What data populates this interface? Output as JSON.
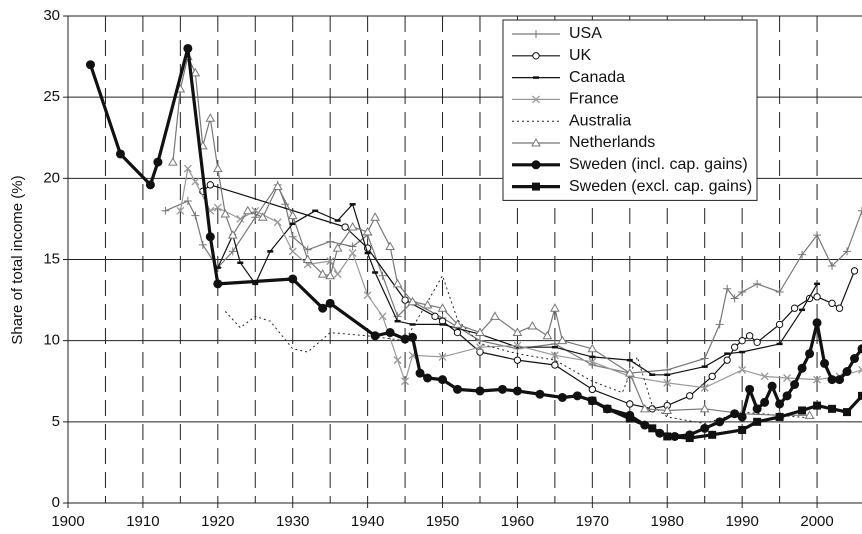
{
  "chart_data": {
    "type": "line",
    "y_label": "Share of total income (%)",
    "xlim": [
      1900,
      2006
    ],
    "ylim": [
      0,
      30
    ],
    "xticks": [
      1900,
      1910,
      1920,
      1930,
      1940,
      1950,
      1960,
      1970,
      1980,
      1990,
      2000
    ],
    "yticks": [
      0,
      5,
      10,
      15,
      20,
      25,
      30
    ],
    "grid": true,
    "legend": "top-right",
    "series": [
      {
        "name": "USA",
        "color": "#777777",
        "marker": "plus",
        "width": 1.2,
        "dash": "none",
        "x": [
          1913,
          1916,
          1917,
          1918,
          1920,
          1922,
          1925,
          1928,
          1929,
          1930,
          1932,
          1935,
          1938,
          1940,
          1942,
          1944,
          1946,
          1950,
          1955,
          1960,
          1965,
          1970,
          1975,
          1980,
          1985,
          1987,
          1988,
          1989,
          1990,
          1992,
          1995,
          1998,
          2000,
          2002,
          2004,
          2006
        ],
        "values": [
          18,
          18.6,
          17.7,
          15.9,
          14.5,
          15.5,
          17.6,
          19.6,
          18.4,
          16.4,
          15.6,
          16.1,
          15.8,
          16.5,
          14.0,
          11.5,
          12.4,
          11.4,
          10.0,
          9.5,
          9.8,
          8.5,
          8.0,
          8.2,
          8.9,
          11,
          13.2,
          12.6,
          13,
          13.5,
          13.0,
          15.3,
          16.5,
          14.6,
          15.5,
          18
        ]
      },
      {
        "name": "UK",
        "color": "#111111",
        "marker": "circle",
        "width": 1.2,
        "dash": "none",
        "x": [
          1918,
          1919,
          1937,
          1940,
          1945,
          1949,
          1950,
          1952,
          1955,
          1960,
          1965,
          1970,
          1975,
          1978,
          1980,
          1983,
          1986,
          1988,
          1989,
          1990,
          1991,
          1992,
          1995,
          1997,
          1999,
          2000,
          2002,
          2003,
          2005
        ],
        "values": [
          19.2,
          19.6,
          17.0,
          15.7,
          12.5,
          11.5,
          11.2,
          10.5,
          9.3,
          8.8,
          8.5,
          7.0,
          6.1,
          5.8,
          6.0,
          6.6,
          7.8,
          8.8,
          9.6,
          10,
          10.3,
          9.9,
          11.0,
          12.0,
          12.6,
          12.7,
          12.3,
          12.0,
          14.3
        ]
      },
      {
        "name": "Canada",
        "color": "#111111",
        "marker": "dash",
        "width": 1.2,
        "dash": "none",
        "x": [
          1920,
          1922,
          1923,
          1925,
          1927,
          1930,
          1933,
          1936,
          1938,
          1940,
          1941,
          1944,
          1946,
          1950,
          1955,
          1960,
          1965,
          1970,
          1975,
          1978,
          1980,
          1985,
          1988,
          1990,
          1995,
          1998,
          2000
        ],
        "values": [
          14.5,
          16.5,
          14.8,
          13.5,
          15.5,
          17.2,
          18.0,
          17.4,
          18.4,
          15.4,
          14.2,
          11.2,
          11.0,
          11.0,
          10.4,
          9.6,
          9.6,
          9.0,
          8.8,
          7.9,
          7.9,
          8.4,
          9.2,
          9.3,
          9.8,
          11.9,
          13.5
        ]
      },
      {
        "name": "France",
        "color": "#999999",
        "marker": "x",
        "width": 1.2,
        "dash": "none",
        "x": [
          1915,
          1916,
          1917,
          1919,
          1920,
          1923,
          1925,
          1928,
          1930,
          1932,
          1935,
          1936,
          1938,
          1940,
          1942,
          1944,
          1945,
          1946,
          1950,
          1955,
          1960,
          1965,
          1970,
          1975,
          1980,
          1985,
          1990,
          1993,
          1996,
          2000,
          2003,
          2006
        ],
        "values": [
          18,
          20.6,
          19.8,
          18.0,
          18.2,
          17.5,
          18.0,
          17.3,
          15.5,
          14.7,
          14.9,
          14.1,
          15.4,
          12.8,
          11.5,
          8.8,
          7.5,
          9.1,
          9.0,
          9.6,
          9.7,
          9.1,
          8.7,
          7.8,
          7.4,
          7.1,
          8.2,
          7.8,
          7.7,
          7.6,
          7.8,
          8.2
        ]
      },
      {
        "name": "Australia",
        "color": "#222222",
        "marker": "none",
        "width": 1,
        "dash": "2 3",
        "x": [
          1921,
          1923,
          1925,
          1927,
          1930,
          1932,
          1935,
          1940,
          1945,
          1950,
          1952,
          1955,
          1960,
          1965,
          1970,
          1974,
          1976,
          1978,
          1980,
          1985,
          1990,
          1995,
          2000
        ],
        "values": [
          11.8,
          10.8,
          11.5,
          11.2,
          9.5,
          9.3,
          10.5,
          10.3,
          10.0,
          14.0,
          11.3,
          9.8,
          9.2,
          8.8,
          7.5,
          6.8,
          9.0,
          6.0,
          5.3,
          4.9,
          5.6,
          5.4,
          5.2
        ]
      },
      {
        "name": "Netherlands",
        "color": "#777777",
        "marker": "triangle",
        "width": 1.2,
        "dash": "none",
        "x": [
          1914,
          1915,
          1916,
          1917,
          1918,
          1919,
          1920,
          1921,
          1922,
          1924,
          1926,
          1928,
          1930,
          1932,
          1934,
          1935,
          1936,
          1938,
          1940,
          1941,
          1943,
          1944,
          1946,
          1948,
          1950,
          1952,
          1955,
          1957,
          1960,
          1962,
          1964,
          1965,
          1966,
          1970,
          1975,
          1977,
          1980,
          1985,
          1990,
          1995,
          1999
        ],
        "values": [
          21,
          25.5,
          27.5,
          26.5,
          22,
          23.7,
          20.6,
          17.8,
          16.5,
          18,
          17.6,
          19.5,
          17.7,
          15.0,
          14.1,
          14.0,
          15.7,
          17.0,
          16.7,
          17.6,
          15.8,
          13.5,
          12.4,
          12.2,
          12.0,
          11.0,
          10.5,
          11.5,
          10.5,
          10.9,
          10.3,
          12.0,
          10.0,
          9.5,
          8.0,
          5.8,
          5.7,
          5.8,
          5.5,
          5.4,
          5.4
        ]
      },
      {
        "name": "Sweden (incl. cap. gains)",
        "color": "#111111",
        "marker": "filled-circle",
        "width": 3.2,
        "dash": "none",
        "x": [
          1903,
          1907,
          1911,
          1912,
          1916,
          1919,
          1920,
          1930,
          1934,
          1935,
          1941,
          1943,
          1945,
          1946,
          1947,
          1948,
          1950,
          1952,
          1955,
          1958,
          1960,
          1963,
          1966,
          1968,
          1970,
          1972,
          1975,
          1977,
          1979,
          1981,
          1983,
          1985,
          1987,
          1989,
          1990,
          1991,
          1992,
          1993,
          1994,
          1995,
          1996,
          1997,
          1998,
          1999,
          2000,
          2001,
          2002,
          2003,
          2004,
          2005,
          2006
        ],
        "values": [
          27,
          21.5,
          19.6,
          21,
          28,
          16.4,
          13.5,
          13.8,
          12,
          12.3,
          10.3,
          10.5,
          10.1,
          10.2,
          8.0,
          7.7,
          7.6,
          7.0,
          6.9,
          7.0,
          6.9,
          6.7,
          6.5,
          6.6,
          6.3,
          5.8,
          5.4,
          4.8,
          4.3,
          4.1,
          4.2,
          4.6,
          5.0,
          5.5,
          5.3,
          7.0,
          5.8,
          6.2,
          7.2,
          6.1,
          6.6,
          7.3,
          8.3,
          9.2,
          11.1,
          8.6,
          7.6,
          7.6,
          8.1,
          8.9,
          9.5
        ]
      },
      {
        "name": "Sweden (excl. cap. gains)",
        "color": "#111111",
        "marker": "square",
        "width": 3.2,
        "dash": "none",
        "x": [
          1970,
          1972,
          1975,
          1978,
          1980,
          1983,
          1986,
          1990,
          1992,
          1995,
          1998,
          2000,
          2002,
          2004,
          2006
        ],
        "values": [
          6.3,
          5.8,
          5.2,
          4.6,
          4.1,
          4.0,
          4.2,
          4.5,
          5.0,
          5.3,
          5.7,
          6.0,
          5.8,
          5.6,
          6.6
        ]
      }
    ]
  }
}
